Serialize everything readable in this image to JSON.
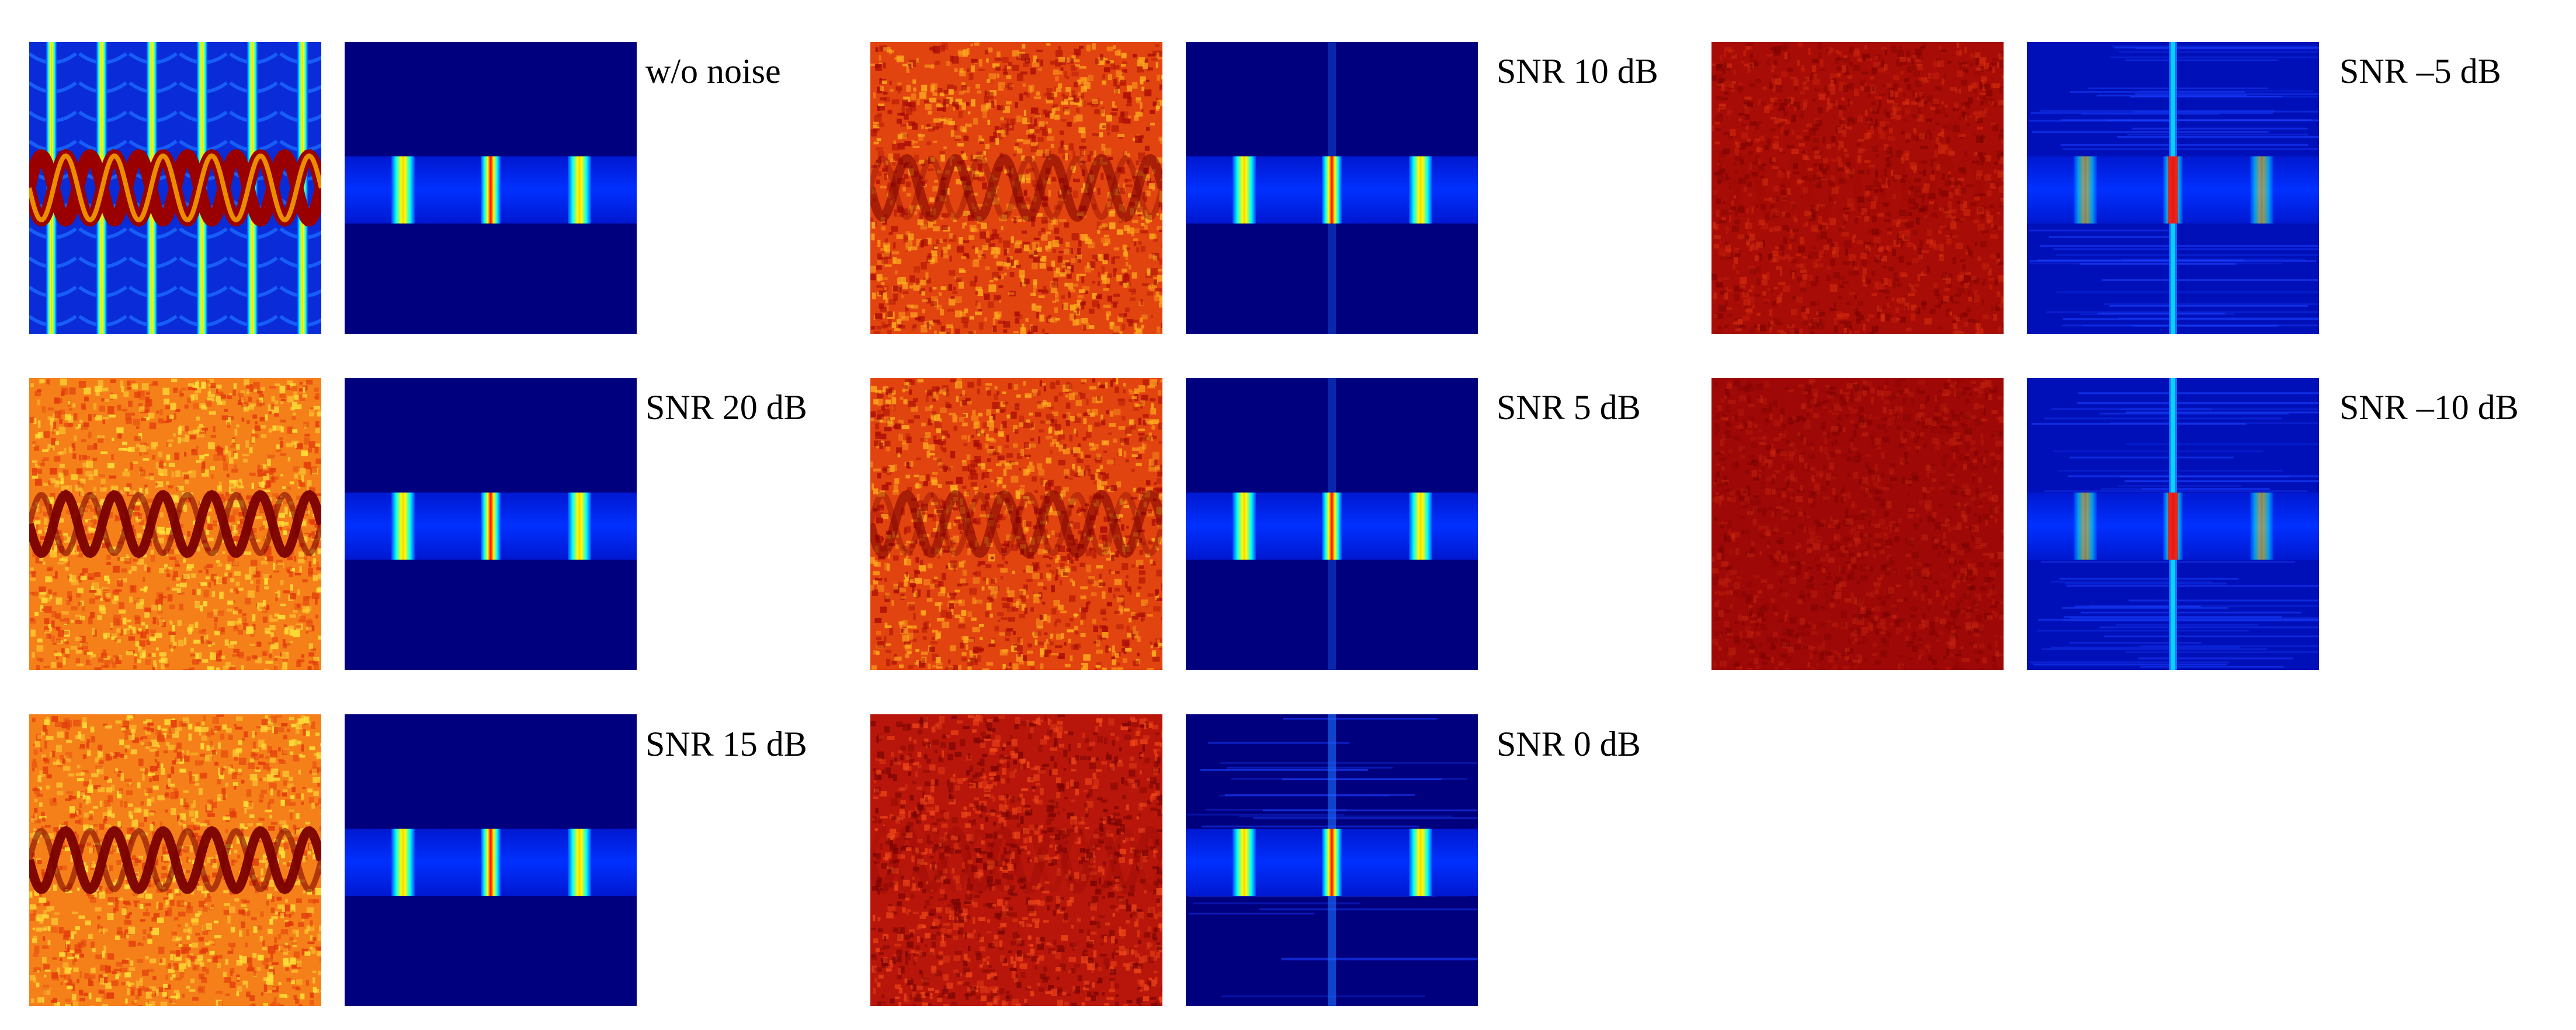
{
  "figure": {
    "panels": [
      {
        "label": "w/o noise",
        "noise": "none"
      },
      {
        "label": "SNR 20 dB",
        "noise": "low"
      },
      {
        "label": "SNR 15 dB",
        "noise": "low"
      },
      {
        "label": "SNR 10 dB",
        "noise": "mid"
      },
      {
        "label": "SNR 5 dB",
        "noise": "mid"
      },
      {
        "label": "SNR 0 dB",
        "noise": "high"
      },
      {
        "label": "SNR –5 dB",
        "noise": "higher"
      },
      {
        "label": "SNR –10 dB",
        "noise": "highest"
      }
    ]
  },
  "colors": {
    "background": "#ffffff",
    "jet_dark_blue": "#00007f",
    "jet_blue": "#0040ff",
    "jet_cyan": "#00ffff",
    "jet_yellow": "#ffff00",
    "jet_red": "#ff0000",
    "jet_dark_red": "#7f0000"
  }
}
